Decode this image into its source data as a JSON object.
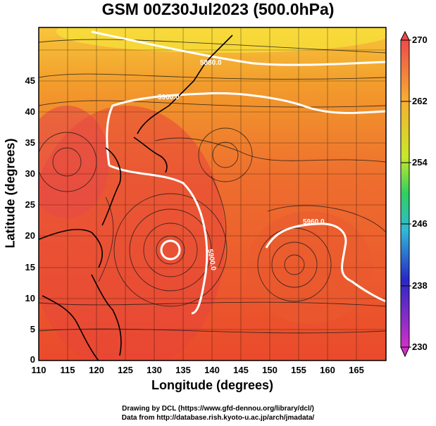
{
  "title": "GSM 00Z30Jul2023 (500.0hPa)",
  "xlabel": "Longitude (degrees)",
  "ylabel": "Latitude  (degrees)",
  "x_ticks": [
    "110",
    "115",
    "120",
    "125",
    "130",
    "135",
    "140",
    "145",
    "150",
    "155",
    "160",
    "165"
  ],
  "y_ticks": [
    "0",
    "5",
    "10",
    "15",
    "20",
    "25",
    "30",
    "35",
    "40",
    "45"
  ],
  "colorbar_ticks": [
    "270",
    "262",
    "254",
    "246",
    "238",
    "230"
  ],
  "contour_labels": [
    "5880.0",
    "5900.0",
    "5960.0",
    "5900.0"
  ],
  "credit_line1": "Drawing by DCL (https://www.gfd-dennou.org/library/dcl/)",
  "credit_line2": "Data from http://database.rish.kyoto-u.ac.jp/arch/jmadata/",
  "colors": {
    "warm_core": "#e8503a",
    "orange": "#f08a2a",
    "yellow": "#f7d230",
    "contour": "#ffffff",
    "coast": "#000000"
  }
}
